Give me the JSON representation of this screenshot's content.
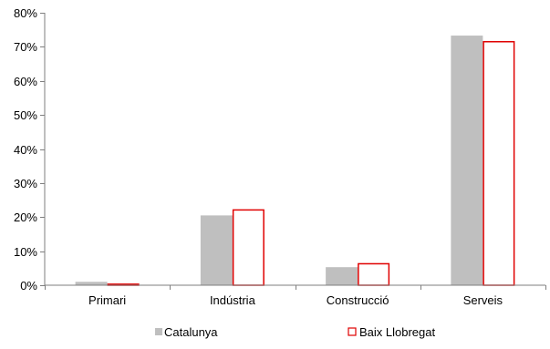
{
  "chart_data": {
    "type": "bar",
    "categories": [
      "Primari",
      "Indústria",
      "Construcció",
      "Serveis"
    ],
    "series": [
      {
        "name": "Catalunya",
        "values": [
          1.0,
          20.5,
          5.3,
          73.3
        ],
        "fill": "#bfbfbf",
        "stroke": "none"
      },
      {
        "name": "Baix Llobregat",
        "values": [
          0.5,
          22.3,
          6.5,
          71.7
        ],
        "fill": "#ffffff",
        "stroke": "#e00000"
      }
    ],
    "ylim": [
      0,
      80
    ],
    "y_ticks": [
      0,
      10,
      20,
      30,
      40,
      50,
      60,
      70,
      80
    ],
    "y_tick_labels": [
      "0%",
      "10%",
      "20%",
      "30%",
      "40%",
      "50%",
      "60%",
      "70%",
      "80%"
    ],
    "title": "",
    "xlabel": "",
    "ylabel": "",
    "grid": false,
    "legend_position": "bottom"
  },
  "colors": {
    "axis": "#7f7f7f",
    "catalunya": "#bfbfbf",
    "baix_llobregat": "#e00000"
  }
}
